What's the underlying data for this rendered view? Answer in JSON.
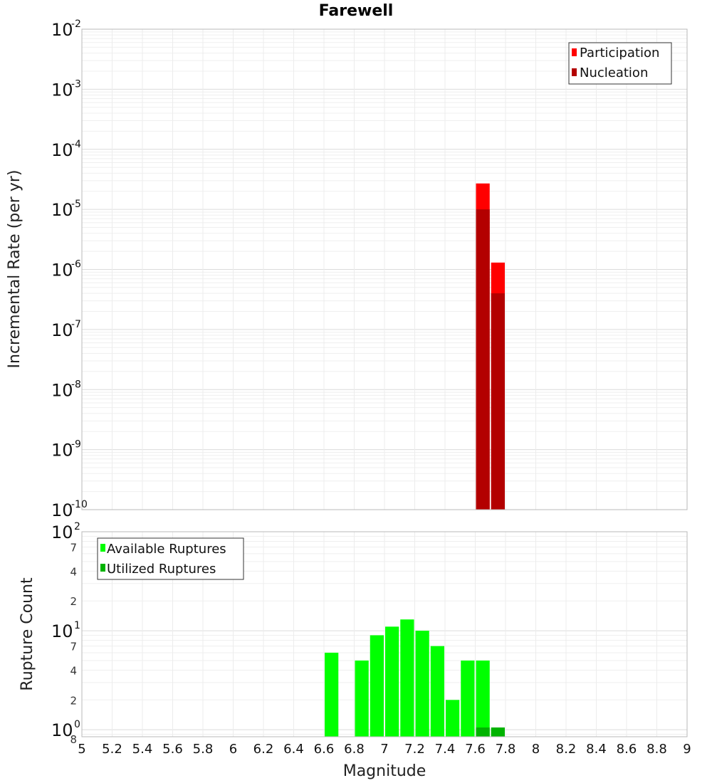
{
  "chart_data": [
    {
      "type": "bar",
      "title": "Farewell",
      "xlabel": "",
      "ylabel": "Incremental Rate (per yr)",
      "xlim": [
        5,
        9
      ],
      "ylim": [
        1e-10,
        0.01
      ],
      "y_scale": "log",
      "grid": true,
      "legend_position": "top-right",
      "x_ticks": [
        "5",
        "5.2",
        "5.4",
        "5.6",
        "5.8",
        "6",
        "6.2",
        "6.4",
        "6.6",
        "6.8",
        "7",
        "7.2",
        "7.4",
        "7.6",
        "7.8",
        "8",
        "8.2",
        "8.4",
        "8.6",
        "8.8",
        "9"
      ],
      "y_ticks": [
        {
          "base": "10",
          "exp": "-2"
        },
        {
          "base": "10",
          "exp": "-3"
        },
        {
          "base": "10",
          "exp": "-4"
        },
        {
          "base": "10",
          "exp": "-5"
        },
        {
          "base": "10",
          "exp": "-6"
        },
        {
          "base": "10",
          "exp": "-7"
        },
        {
          "base": "10",
          "exp": "-8"
        },
        {
          "base": "10",
          "exp": "-9"
        },
        {
          "base": "10",
          "exp": "-10"
        }
      ],
      "bin_width": 0.1,
      "series": [
        {
          "name": "Participation",
          "color": "#ff0000",
          "points": [
            {
              "x": 7.65,
              "y": 2.7e-05
            },
            {
              "x": 7.75,
              "y": 1.3e-06
            }
          ]
        },
        {
          "name": "Nucleation",
          "color": "#b30000",
          "points": [
            {
              "x": 7.65,
              "y": 1e-05
            },
            {
              "x": 7.75,
              "y": 4e-07
            }
          ]
        }
      ]
    },
    {
      "type": "bar",
      "title": "",
      "xlabel": "Magnitude",
      "ylabel": "Rupture Count",
      "xlim": [
        5,
        9
      ],
      "ylim": [
        0.85,
        100
      ],
      "y_scale": "log",
      "grid": true,
      "legend_position": "top-left",
      "x_ticks": [
        "5",
        "5.2",
        "5.4",
        "5.6",
        "5.8",
        "6",
        "6.2",
        "6.4",
        "6.6",
        "6.8",
        "7",
        "7.2",
        "7.4",
        "7.6",
        "7.8",
        "8",
        "8.2",
        "8.4",
        "8.6",
        "8.8",
        "9"
      ],
      "y_major_ticks": [
        {
          "base": "10",
          "exp": "2",
          "value": 100
        },
        {
          "base": "10",
          "exp": "1",
          "value": 10
        },
        {
          "base": "10",
          "exp": "0",
          "value": 1
        }
      ],
      "y_minor_ticks": [
        {
          "label": "7",
          "value": 70
        },
        {
          "label": "4",
          "value": 40
        },
        {
          "label": "2",
          "value": 20
        },
        {
          "label": "7",
          "value": 7
        },
        {
          "label": "4",
          "value": 4
        },
        {
          "label": "2",
          "value": 2
        },
        {
          "label": "8",
          "value": 0.8
        }
      ],
      "bin_width": 0.1,
      "series": [
        {
          "name": "Available Ruptures",
          "color": "#00ff00",
          "points": [
            {
              "x": 6.65,
              "y": 6
            },
            {
              "x": 6.85,
              "y": 5
            },
            {
              "x": 6.95,
              "y": 9
            },
            {
              "x": 7.05,
              "y": 11
            },
            {
              "x": 7.15,
              "y": 13
            },
            {
              "x": 7.25,
              "y": 10
            },
            {
              "x": 7.35,
              "y": 7
            },
            {
              "x": 7.45,
              "y": 2
            },
            {
              "x": 7.55,
              "y": 5
            },
            {
              "x": 7.65,
              "y": 5
            },
            {
              "x": 7.75,
              "y": 1
            }
          ]
        },
        {
          "name": "Utilized Ruptures",
          "color": "#00b300",
          "points": [
            {
              "x": 7.65,
              "y": 1
            },
            {
              "x": 7.75,
              "y": 1
            }
          ]
        }
      ]
    }
  ]
}
